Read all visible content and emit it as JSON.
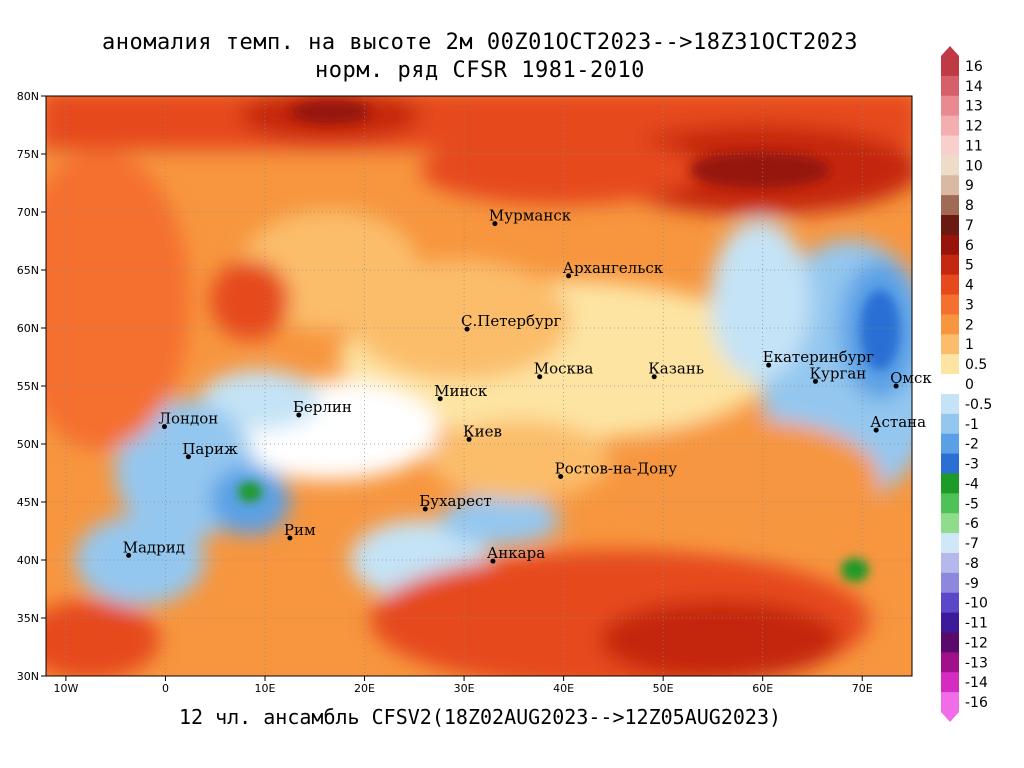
{
  "title": {
    "line1": "аномалия темп. на высоте 2м 00Z01OCT2023-->18Z31OCT2023",
    "line2": "норм. ряд CFSR 1981-2010"
  },
  "footer": "12 чл. ансамбль CFSV2(18Z02AUG2023-->12Z05AUG2023)",
  "map": {
    "lon_range": [
      -12,
      75
    ],
    "lat_range": [
      30,
      80
    ],
    "lon_ticks": [
      {
        "value": -10,
        "label": "10W"
      },
      {
        "value": 0,
        "label": "0"
      },
      {
        "value": 10,
        "label": "10E"
      },
      {
        "value": 20,
        "label": "20E"
      },
      {
        "value": 30,
        "label": "30E"
      },
      {
        "value": 40,
        "label": "40E"
      },
      {
        "value": 50,
        "label": "50E"
      },
      {
        "value": 60,
        "label": "60E"
      },
      {
        "value": 70,
        "label": "70E"
      }
    ],
    "lat_ticks": [
      {
        "value": 30,
        "label": "30N"
      },
      {
        "value": 35,
        "label": "35N"
      },
      {
        "value": 40,
        "label": "40N"
      },
      {
        "value": 45,
        "label": "45N"
      },
      {
        "value": 50,
        "label": "50N"
      },
      {
        "value": 55,
        "label": "55N"
      },
      {
        "value": 60,
        "label": "60N"
      },
      {
        "value": 65,
        "label": "65N"
      },
      {
        "value": 70,
        "label": "70N"
      },
      {
        "value": 75,
        "label": "75N"
      },
      {
        "value": 80,
        "label": "80N"
      }
    ],
    "cities": [
      {
        "name": "Мурманск",
        "lon": 33.1,
        "lat": 69.0
      },
      {
        "name": "Архангельск",
        "lon": 40.5,
        "lat": 64.5
      },
      {
        "name": "С.Петербург",
        "lon": 30.3,
        "lat": 59.9
      },
      {
        "name": "Москва",
        "lon": 37.6,
        "lat": 55.8
      },
      {
        "name": "Казань",
        "lon": 49.1,
        "lat": 55.8
      },
      {
        "name": "Екатеринбург",
        "lon": 60.6,
        "lat": 56.8
      },
      {
        "name": "Курган",
        "lon": 65.3,
        "lat": 55.4
      },
      {
        "name": "Омск",
        "lon": 73.4,
        "lat": 55.0
      },
      {
        "name": "Астана",
        "lon": 71.4,
        "lat": 51.2
      },
      {
        "name": "Минск",
        "lon": 27.6,
        "lat": 53.9
      },
      {
        "name": "Берлин",
        "lon": 13.4,
        "lat": 52.5
      },
      {
        "name": "Лондон",
        "lon": -0.1,
        "lat": 51.5
      },
      {
        "name": "Париж",
        "lon": 2.3,
        "lat": 48.9
      },
      {
        "name": "Киев",
        "lon": 30.5,
        "lat": 50.4
      },
      {
        "name": "Ростов-на-Дону",
        "lon": 39.7,
        "lat": 47.2
      },
      {
        "name": "Бухарест",
        "lon": 26.1,
        "lat": 44.4
      },
      {
        "name": "Рим",
        "lon": 12.5,
        "lat": 41.9
      },
      {
        "name": "Мадрид",
        "lon": -3.7,
        "lat": 40.4
      },
      {
        "name": "Анкара",
        "lon": 32.9,
        "lat": 39.9
      }
    ]
  },
  "legend": [
    {
      "label": "16",
      "color": "#bf3a45"
    },
    {
      "label": "14",
      "color": "#d6606a"
    },
    {
      "label": "13",
      "color": "#e98a90"
    },
    {
      "label": "12",
      "color": "#f3aeb0"
    },
    {
      "label": "11",
      "color": "#f8cfcd"
    },
    {
      "label": "10",
      "color": "#efdcc8"
    },
    {
      "label": "9",
      "color": "#d9b9a2"
    },
    {
      "label": "8",
      "color": "#a06a55"
    },
    {
      "label": "7",
      "color": "#6a1a10"
    },
    {
      "label": "6",
      "color": "#96140a"
    },
    {
      "label": "5",
      "color": "#c42810"
    },
    {
      "label": "4",
      "color": "#e64a1c"
    },
    {
      "label": "3",
      "color": "#f5702e"
    },
    {
      "label": "2",
      "color": "#f7963f"
    },
    {
      "label": "1",
      "color": "#fbbd6b"
    },
    {
      "label": "0.5",
      "color": "#fde4a3"
    },
    {
      "label": "0",
      "color": "#ffffff"
    },
    {
      "label": "-0.5",
      "color": "#c4e3f6"
    },
    {
      "label": "-1",
      "color": "#94c7ef"
    },
    {
      "label": "-2",
      "color": "#5aa0e6"
    },
    {
      "label": "-3",
      "color": "#2a6fd4"
    },
    {
      "label": "-4",
      "color": "#1d9a28"
    },
    {
      "label": "-5",
      "color": "#4ec257"
    },
    {
      "label": "-6",
      "color": "#8edc8c"
    },
    {
      "label": "-7",
      "color": "#cfe7f7"
    },
    {
      "label": "-8",
      "color": "#b4b8ec"
    },
    {
      "label": "-9",
      "color": "#8c88de"
    },
    {
      "label": "-10",
      "color": "#5a48c8"
    },
    {
      "label": "-11",
      "color": "#3c1a9a"
    },
    {
      "label": "-12",
      "color": "#5a0a6a"
    },
    {
      "label": "-13",
      "color": "#a0108a"
    },
    {
      "label": "-14",
      "color": "#d42cc0"
    },
    {
      "label": "-16",
      "color": "#f06ce8"
    }
  ]
}
